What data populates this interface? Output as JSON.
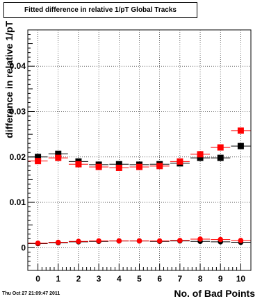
{
  "title": "Fitted difference in relative 1/pT  Global Tracks",
  "timestamp": "Thu Oct 27 21:09:47 2011",
  "chart_data": {
    "type": "scatter",
    "xlabel": "No. of Bad Points",
    "ylabel": "difference in relative 1/pT",
    "xlim": [
      -0.5,
      10.5
    ],
    "ylim": [
      -0.005,
      0.048
    ],
    "x_ticks": [
      0,
      1,
      2,
      3,
      4,
      5,
      6,
      7,
      8,
      9,
      10
    ],
    "x_tick_labels": [
      "0",
      "1",
      "2",
      "3",
      "4",
      "5",
      "6",
      "7",
      "8",
      "9",
      "10"
    ],
    "y_ticks": [
      0,
      0.01,
      0.02,
      0.03,
      0.04
    ],
    "y_tick_labels": [
      "0",
      "0.01",
      "0.02",
      "0.03",
      "0.04"
    ],
    "grid": true,
    "series": [
      {
        "color": "#000000",
        "marker": "square",
        "x": [
          0,
          1,
          2,
          3,
          4,
          5,
          6,
          7,
          8,
          9,
          10
        ],
        "y": [
          0.02,
          0.0207,
          0.019,
          0.0183,
          0.0184,
          0.0183,
          0.0184,
          0.0186,
          0.0198,
          0.0198,
          0.0224
        ]
      },
      {
        "color": "#ff0000",
        "marker": "square",
        "x": [
          0,
          1,
          2,
          3,
          4,
          5,
          6,
          7,
          8,
          9,
          10
        ],
        "y": [
          0.0191,
          0.0198,
          0.0184,
          0.0178,
          0.0176,
          0.0178,
          0.018,
          0.019,
          0.0206,
          0.0221,
          0.0258
        ]
      },
      {
        "color": "#000000",
        "marker": "circle",
        "x": [
          0,
          1,
          2,
          3,
          4,
          5,
          6,
          7,
          8,
          9,
          10
        ],
        "y": [
          0.0009,
          0.0011,
          0.0013,
          0.0014,
          0.0015,
          0.0015,
          0.0014,
          0.0015,
          0.0014,
          0.0013,
          0.0012
        ]
      },
      {
        "color": "#ff0000",
        "marker": "circle",
        "x": [
          0,
          1,
          2,
          3,
          4,
          5,
          6,
          7,
          8,
          9,
          10
        ],
        "y": [
          0.001,
          0.0012,
          0.0014,
          0.0015,
          0.0015,
          0.0015,
          0.0015,
          0.0016,
          0.0019,
          0.0018,
          0.0016
        ]
      }
    ]
  }
}
